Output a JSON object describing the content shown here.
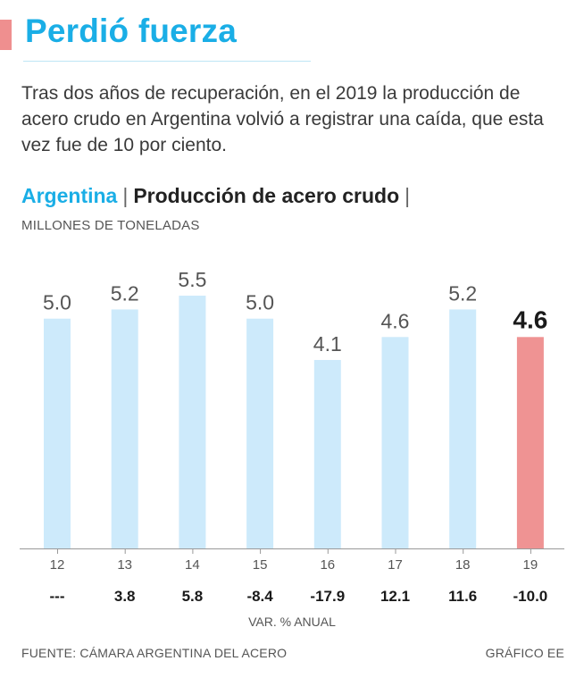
{
  "header": {
    "title": "Perdió fuerza",
    "description": "Tras dos años de recuperación, en el 2019 la producción de acero crudo en Argentina volvió a registrar una caída, que esta vez fue de 10 por ciento."
  },
  "subtitle": {
    "country": "Argentina",
    "separator": "|",
    "topic": "Producción de acero crudo",
    "trailing": "|"
  },
  "units_label": "MILLONES DE TONELADAS",
  "chart_data": {
    "type": "bar",
    "title": "Argentina | Producción de acero crudo",
    "ylabel": "MILLONES DE TONELADAS",
    "xlabel": "",
    "ylim": [
      0,
      5.5
    ],
    "categories": [
      "12",
      "13",
      "14",
      "15",
      "16",
      "17",
      "18",
      "19"
    ],
    "values": [
      5.0,
      5.2,
      5.5,
      5.0,
      4.1,
      4.6,
      5.2,
      4.6
    ],
    "value_labels": [
      "5.0",
      "5.2",
      "5.5",
      "5.0",
      "4.1",
      "4.6",
      "5.2",
      "4.6"
    ],
    "highlight_index": 7,
    "colors": {
      "bar": "#cdeafb",
      "highlight": "#ef9393",
      "axis": "#999999"
    },
    "annual_change": {
      "label": "VAR. % ANUAL",
      "values": [
        "---",
        "3.8",
        "5.8",
        "-8.4",
        "-17.9",
        "12.1",
        "11.6",
        "-10.0"
      ]
    }
  },
  "footer": {
    "source": "FUENTE: CÁMARA ARGENTINA DEL ACERO",
    "credit": "GRÁFICO EE"
  }
}
